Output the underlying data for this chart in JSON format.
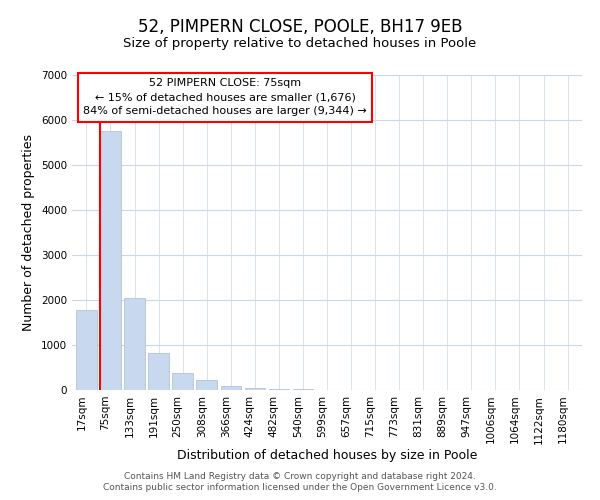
{
  "title": "52, PIMPERN CLOSE, POOLE, BH17 9EB",
  "subtitle": "Size of property relative to detached houses in Poole",
  "xlabel": "Distribution of detached houses by size in Poole",
  "ylabel": "Number of detached properties",
  "bar_labels": [
    "17sqm",
    "75sqm",
    "133sqm",
    "191sqm",
    "250sqm",
    "308sqm",
    "366sqm",
    "424sqm",
    "482sqm",
    "540sqm",
    "599sqm",
    "657sqm",
    "715sqm",
    "773sqm",
    "831sqm",
    "889sqm",
    "947sqm",
    "1006sqm",
    "1064sqm",
    "1122sqm",
    "1180sqm"
  ],
  "bar_values": [
    1780,
    5750,
    2050,
    830,
    370,
    220,
    100,
    55,
    30,
    15,
    8,
    4,
    2,
    0,
    0,
    0,
    0,
    0,
    0,
    0,
    0
  ],
  "highlight_bar_index": 1,
  "bar_color": "#c8d8ee",
  "bar_edge_color": "#aabcce",
  "red_line_bar_index": 1,
  "ylim": [
    0,
    7000
  ],
  "yticks": [
    0,
    1000,
    2000,
    3000,
    4000,
    5000,
    6000,
    7000
  ],
  "annotation_box_text": "52 PIMPERN CLOSE: 75sqm\n← 15% of detached houses are smaller (1,676)\n84% of semi-detached houses are larger (9,344) →",
  "footer_line1": "Contains HM Land Registry data © Crown copyright and database right 2024.",
  "footer_line2": "Contains public sector information licensed under the Open Government Licence v3.0.",
  "bg_color": "#ffffff",
  "grid_color": "#c8d8e8",
  "title_fontsize": 12,
  "subtitle_fontsize": 9.5,
  "axis_label_fontsize": 9,
  "tick_fontsize": 7.5,
  "footer_fontsize": 6.5
}
